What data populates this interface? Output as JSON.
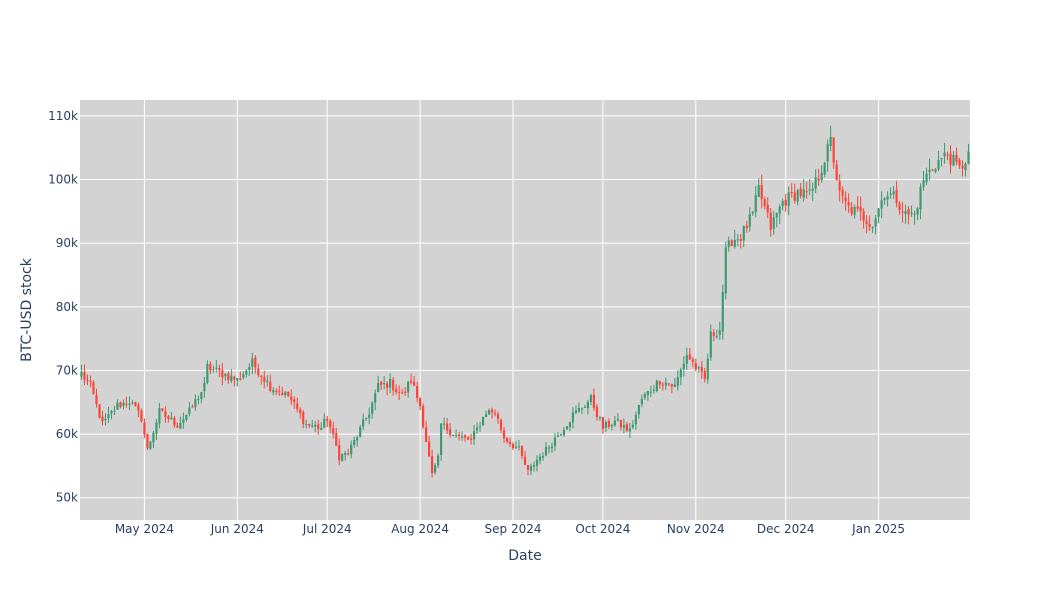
{
  "chart_data": {
    "type": "candlestick",
    "title": "",
    "xlabel": "Date",
    "ylabel": "BTC-USD stock",
    "x_range": [
      "2024-04-10",
      "2025-01-31"
    ],
    "ylim": [
      46500,
      112500
    ],
    "y_ticks": [
      {
        "value": 50000,
        "label": "50k"
      },
      {
        "value": 60000,
        "label": "60k"
      },
      {
        "value": 70000,
        "label": "70k"
      },
      {
        "value": 80000,
        "label": "80k"
      },
      {
        "value": 90000,
        "label": "90k"
      },
      {
        "value": 100000,
        "label": "100k"
      },
      {
        "value": 110000,
        "label": "110k"
      }
    ],
    "x_ticks": [
      {
        "date": "2024-05-01",
        "label": "May 2024"
      },
      {
        "date": "2024-06-01",
        "label": "Jun 2024"
      },
      {
        "date": "2024-07-01",
        "label": "Jul 2024"
      },
      {
        "date": "2024-08-01",
        "label": "Aug 2024"
      },
      {
        "date": "2024-09-01",
        "label": "Sep 2024"
      },
      {
        "date": "2024-10-01",
        "label": "Oct 2024"
      },
      {
        "date": "2024-11-01",
        "label": "Nov 2024"
      },
      {
        "date": "2024-12-01",
        "label": "Dec 2024"
      },
      {
        "date": "2025-01-01",
        "label": "Jan 2025"
      }
    ],
    "grid": true,
    "legend": "none",
    "colors": {
      "increasing": "#3d9970",
      "decreasing": "#ff4136",
      "plot_background": "#d3d3d3",
      "grid": "#ffffff",
      "text": "#2a3f5f"
    },
    "close_anchors": [
      [
        "2024-04-10",
        69500
      ],
      [
        "2024-04-13",
        67500
      ],
      [
        "2024-04-17",
        61500
      ],
      [
        "2024-04-22",
        64500
      ],
      [
        "2024-04-26",
        65200
      ],
      [
        "2024-04-30",
        62500
      ],
      [
        "2024-05-02",
        57500
      ],
      [
        "2024-05-06",
        63500
      ],
      [
        "2024-05-12",
        61500
      ],
      [
        "2024-05-16",
        63500
      ],
      [
        "2024-05-21",
        67500
      ],
      [
        "2024-05-22",
        70500
      ],
      [
        "2024-06-01",
        68500
      ],
      [
        "2024-06-06",
        71200
      ],
      [
        "2024-06-12",
        67500
      ],
      [
        "2024-06-18",
        66000
      ],
      [
        "2024-06-24",
        61500
      ],
      [
        "2024-06-29",
        61000
      ],
      [
        "2024-07-01",
        62500
      ],
      [
        "2024-07-05",
        56500
      ],
      [
        "2024-07-08",
        57000
      ],
      [
        "2024-07-15",
        63500
      ],
      [
        "2024-07-18",
        67500
      ],
      [
        "2024-07-22",
        68000
      ],
      [
        "2024-07-26",
        66000
      ],
      [
        "2024-07-29",
        68500
      ],
      [
        "2024-08-01",
        64500
      ],
      [
        "2024-08-05",
        53500
      ],
      [
        "2024-08-07",
        56000
      ],
      [
        "2024-08-08",
        61500
      ],
      [
        "2024-08-14",
        59500
      ],
      [
        "2024-08-18",
        59000
      ],
      [
        "2024-08-23",
        63500
      ],
      [
        "2024-08-26",
        63500
      ],
      [
        "2024-08-29",
        59500
      ],
      [
        "2024-09-03",
        57500
      ],
      [
        "2024-09-06",
        54000
      ],
      [
        "2024-09-09",
        56000
      ],
      [
        "2024-09-12",
        57500
      ],
      [
        "2024-09-17",
        60500
      ],
      [
        "2024-09-21",
        63000
      ],
      [
        "2024-09-27",
        65500
      ],
      [
        "2024-10-01",
        61000
      ],
      [
        "2024-10-05",
        62000
      ],
      [
        "2024-10-10",
        60500
      ],
      [
        "2024-10-14",
        65500
      ],
      [
        "2024-10-20",
        68500
      ],
      [
        "2024-10-25",
        67500
      ],
      [
        "2024-10-29",
        72500
      ],
      [
        "2024-11-04",
        68500
      ],
      [
        "2024-11-06",
        75500
      ],
      [
        "2024-11-09",
        76500
      ],
      [
        "2024-11-11",
        88500
      ],
      [
        "2024-11-13",
        90500
      ],
      [
        "2024-11-16",
        91000
      ],
      [
        "2024-11-20",
        94500
      ],
      [
        "2024-11-22",
        98500
      ],
      [
        "2024-11-26",
        92500
      ],
      [
        "2024-11-30",
        96500
      ],
      [
        "2024-12-05",
        98000
      ],
      [
        "2024-12-09",
        97500
      ],
      [
        "2024-12-12",
        100500
      ],
      [
        "2024-12-16",
        106000
      ],
      [
        "2024-12-19",
        97500
      ],
      [
        "2024-12-22",
        95500
      ],
      [
        "2024-12-26",
        94500
      ],
      [
        "2024-12-30",
        93000
      ],
      [
        "2025-01-03",
        98000
      ],
      [
        "2025-01-07",
        97000
      ],
      [
        "2025-01-10",
        94500
      ],
      [
        "2025-01-13",
        94500
      ],
      [
        "2025-01-16",
        100000
      ],
      [
        "2025-01-20",
        102500
      ],
      [
        "2025-01-24",
        104000
      ],
      [
        "2025-01-28",
        101500
      ],
      [
        "2025-01-31",
        104000
      ]
    ]
  }
}
